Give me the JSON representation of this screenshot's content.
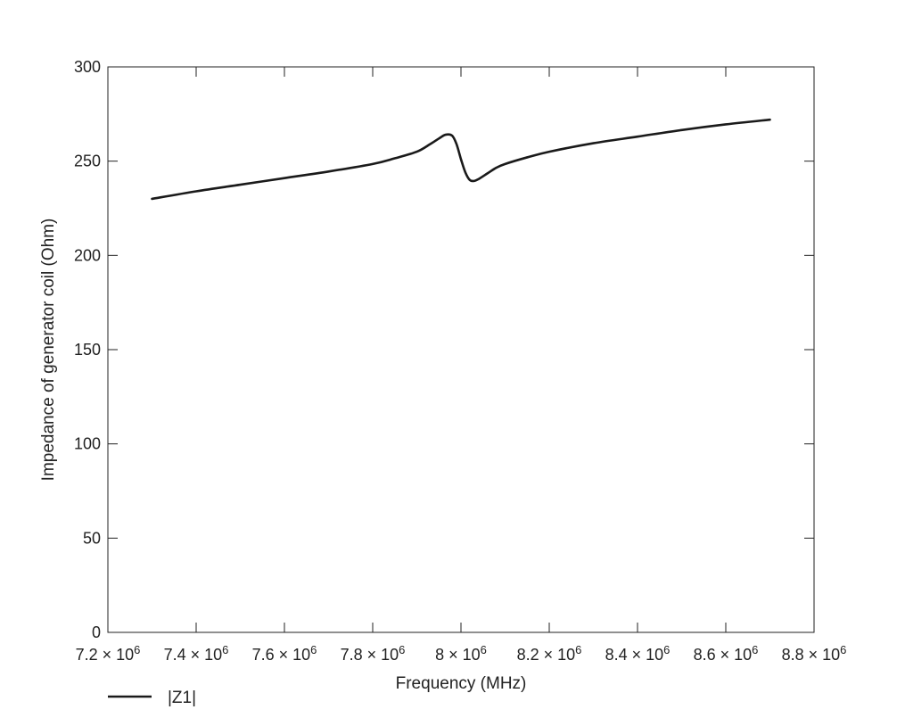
{
  "chart_data": {
    "type": "line",
    "title": "",
    "xlabel": "Frequency (MHz)",
    "ylabel": "Impedance of generator coil (Ohm)",
    "xlim": [
      7200000,
      8800000
    ],
    "ylim": [
      0,
      300
    ],
    "grid": false,
    "legend_position": "bottom-left",
    "x_ticks": [
      {
        "value": 7200000,
        "mantissa": "7.2",
        "exp": "6"
      },
      {
        "value": 7400000,
        "mantissa": "7.4",
        "exp": "6"
      },
      {
        "value": 7600000,
        "mantissa": "7.6",
        "exp": "6"
      },
      {
        "value": 7800000,
        "mantissa": "7.8",
        "exp": "6"
      },
      {
        "value": 8000000,
        "mantissa": "8",
        "exp": "6"
      },
      {
        "value": 8200000,
        "mantissa": "8.2",
        "exp": "6"
      },
      {
        "value": 8400000,
        "mantissa": "8.4",
        "exp": "6"
      },
      {
        "value": 8600000,
        "mantissa": "8.6",
        "exp": "6"
      },
      {
        "value": 8800000,
        "mantissa": "8.8",
        "exp": "6"
      }
    ],
    "y_ticks": [
      0,
      50,
      100,
      150,
      200,
      250,
      300
    ],
    "series": [
      {
        "name": "|Z1|",
        "color": "#1a1a1a",
        "x": [
          7300000,
          7400000,
          7500000,
          7600000,
          7700000,
          7800000,
          7850000,
          7900000,
          7930000,
          7950000,
          7965000,
          7980000,
          7990000,
          8000000,
          8010000,
          8020000,
          8030000,
          8040000,
          8060000,
          8080000,
          8100000,
          8150000,
          8200000,
          8300000,
          8400000,
          8500000,
          8600000,
          8700000
        ],
        "y": [
          230,
          234,
          237.5,
          241,
          244.5,
          248.5,
          251.5,
          255,
          259,
          262,
          264,
          263.5,
          259,
          251,
          244,
          240,
          239.5,
          240.5,
          243.5,
          246.5,
          248.5,
          252,
          255,
          259.5,
          263,
          266.5,
          269.5,
          272
        ]
      }
    ]
  }
}
